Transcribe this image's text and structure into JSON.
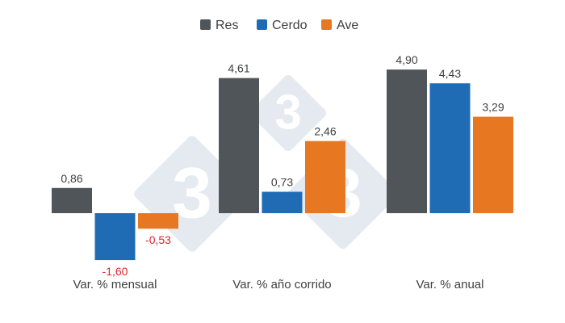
{
  "chart_data": {
    "type": "bar",
    "categories": [
      "Var. % mensual",
      "Var. % año corrido",
      "Var. % anual"
    ],
    "series": [
      {
        "name": "Res",
        "color": "#505559",
        "values": [
          0.86,
          4.61,
          4.9
        ],
        "labels": [
          "0,86",
          "4,61",
          "4,90"
        ]
      },
      {
        "name": "Cerdo",
        "color": "#1F6CB5",
        "values": [
          -1.6,
          0.73,
          4.43
        ],
        "labels": [
          "-1,60",
          "0,73",
          "4,43"
        ]
      },
      {
        "name": "Ave",
        "color": "#E87722",
        "values": [
          -0.53,
          2.46,
          3.29
        ],
        "labels": [
          "-0,53",
          "2,46",
          "3,29"
        ]
      }
    ],
    "ylim": [
      -1.6,
      4.9
    ],
    "legend_position": "top-center",
    "grid": false,
    "positive_label_color": "#404040",
    "negative_label_color": "#E0262F",
    "title": "",
    "xlabel": "",
    "ylabel": ""
  },
  "watermark": {
    "text": "333",
    "color": "#DCE3EC"
  }
}
